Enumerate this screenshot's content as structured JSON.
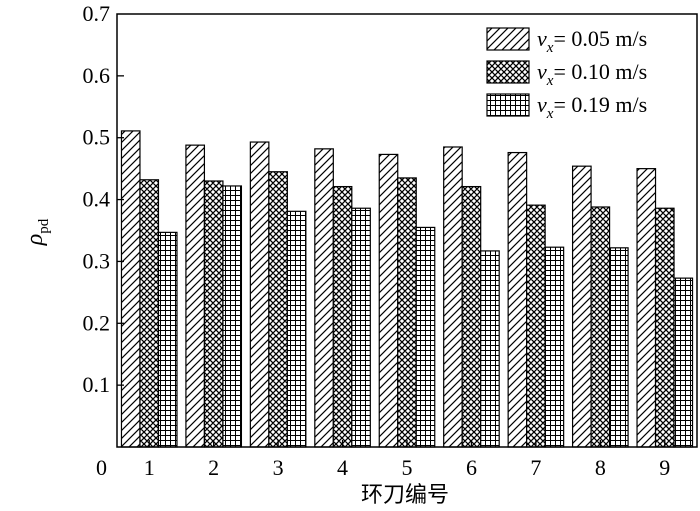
{
  "chart_data": {
    "type": "bar",
    "categories": [
      "1",
      "2",
      "3",
      "4",
      "5",
      "6",
      "7",
      "8",
      "9"
    ],
    "xlabel": "环刀编号",
    "ylabel": {
      "symbol": "ρ",
      "subscript": "pd"
    },
    "ylim": [
      0,
      0.7
    ],
    "yticks": [
      "0",
      "0.1",
      "0.2",
      "0.3",
      "0.4",
      "0.5",
      "0.6",
      "0.7"
    ],
    "legend_position": "top-right",
    "series": [
      {
        "name": "= 0.05 m/s",
        "symbol": "v",
        "subscript": "x",
        "pattern": "diagonal-hatch",
        "values": [
          0.511,
          0.488,
          0.493,
          0.482,
          0.473,
          0.485,
          0.476,
          0.454,
          0.45
        ]
      },
      {
        "name": "= 0.10 m/s",
        "symbol": "v",
        "subscript": "x",
        "pattern": "cross-hatch",
        "values": [
          0.432,
          0.43,
          0.445,
          0.421,
          0.435,
          0.421,
          0.391,
          0.388,
          0.386
        ]
      },
      {
        "name": "= 0.19 m/s",
        "symbol": "v",
        "subscript": "x",
        "pattern": "grid",
        "values": [
          0.347,
          0.422,
          0.381,
          0.386,
          0.355,
          0.317,
          0.323,
          0.322,
          0.273
        ]
      }
    ]
  }
}
